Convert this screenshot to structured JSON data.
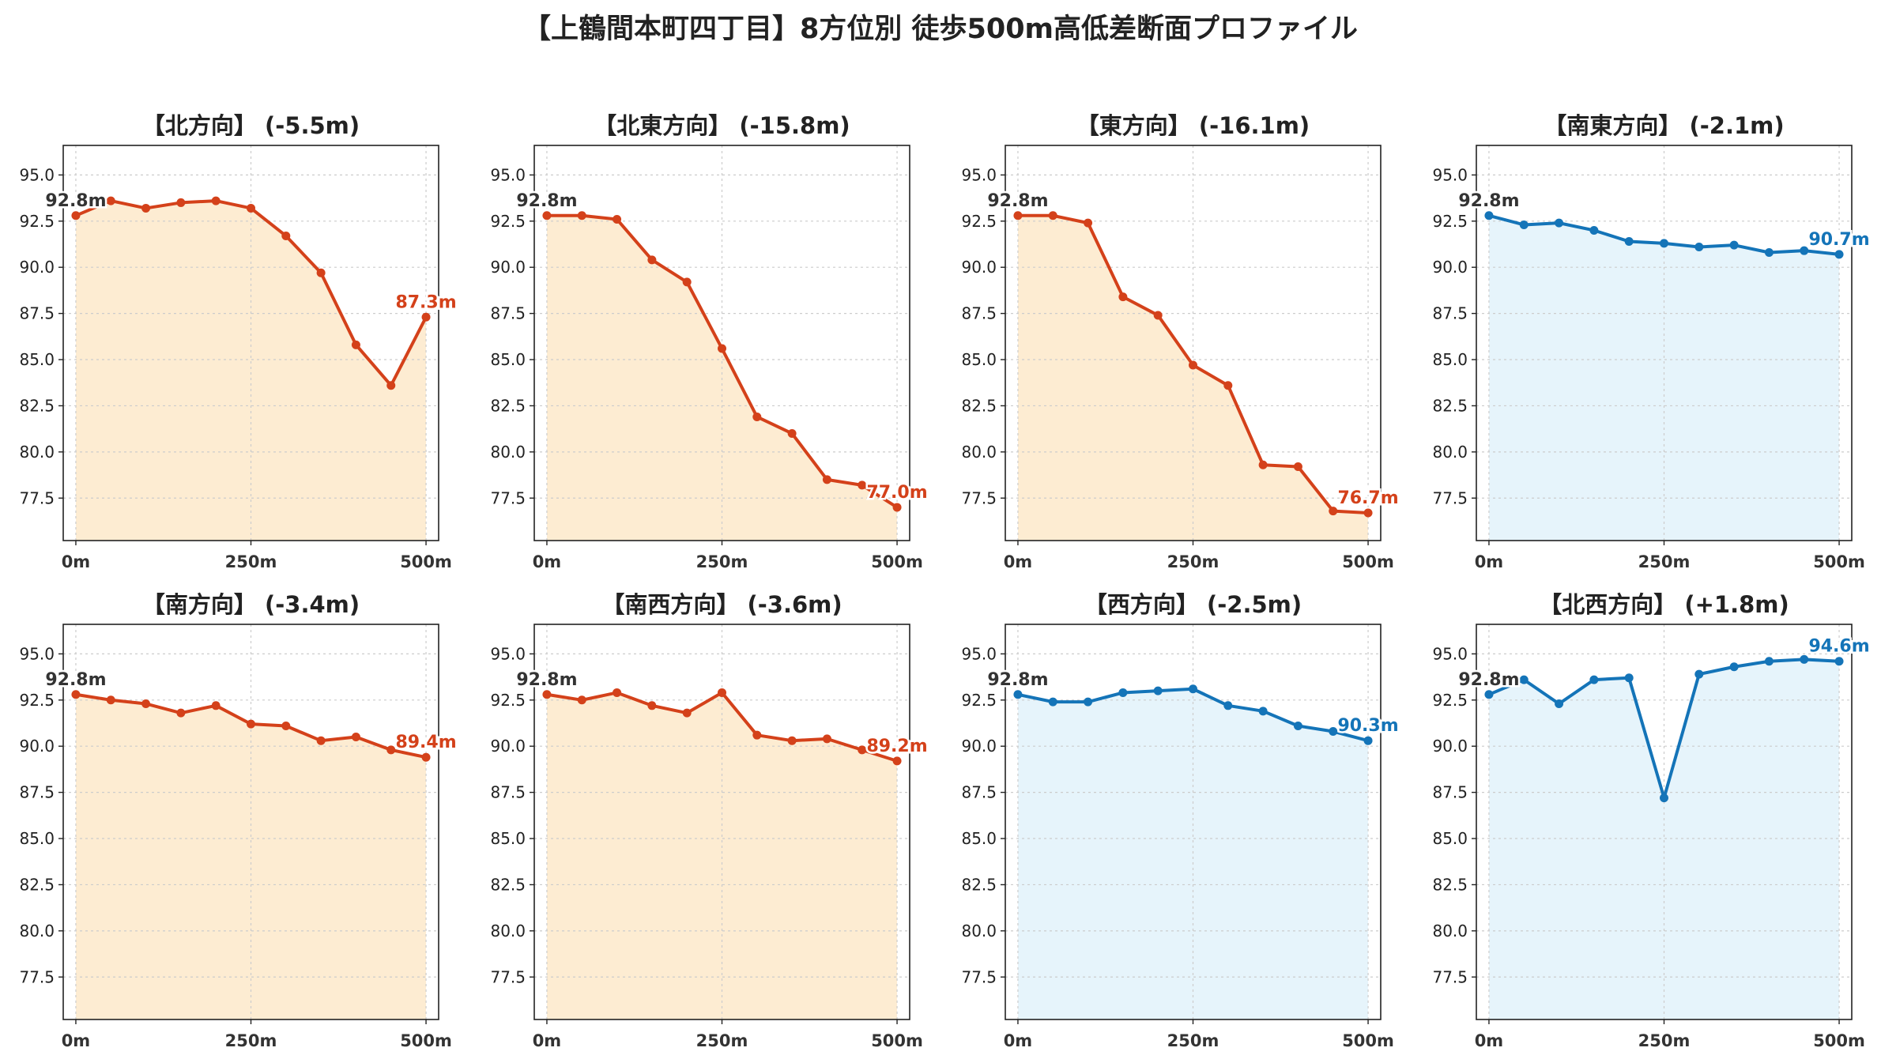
{
  "title": "【上鶴間本町四丁目】8方位別 徒歩500m高低差断面プロファイル",
  "colors": {
    "descent_line": "#d4411a",
    "descent_fill": "#fdecd2",
    "flat_line": "#1474b8",
    "flat_fill": "#e6f4fb",
    "start_label": "#333333",
    "grid": "#cccccc"
  },
  "chart_data": [
    {
      "type": "line",
      "title": "【北方向】 (-5.5m)",
      "x": [
        0,
        50,
        100,
        150,
        200,
        250,
        300,
        350,
        400,
        450,
        500
      ],
      "xticks": [
        "0m",
        "250m",
        "500m"
      ],
      "xtick_values": [
        0,
        250,
        500
      ],
      "yticks": [
        "77.5",
        "80.0",
        "82.5",
        "85.0",
        "87.5",
        "90.0",
        "92.5",
        "95.0"
      ],
      "ytick_values": [
        77.5,
        80,
        82.5,
        85,
        87.5,
        90,
        92.5,
        95
      ],
      "ylim": [
        75.2,
        96.6
      ],
      "xlim": [
        -18,
        518
      ],
      "grid": true,
      "color_scheme": "descent",
      "values": [
        92.8,
        93.6,
        93.2,
        93.5,
        93.6,
        93.2,
        91.7,
        89.7,
        85.8,
        83.6,
        87.3
      ],
      "start_label": "92.8m",
      "end_label": "87.3m"
    },
    {
      "type": "line",
      "title": "【北東方向】 (-15.8m)",
      "x": [
        0,
        50,
        100,
        150,
        200,
        250,
        300,
        350,
        400,
        450,
        500
      ],
      "xticks": [
        "0m",
        "250m",
        "500m"
      ],
      "xtick_values": [
        0,
        250,
        500
      ],
      "yticks": [
        "77.5",
        "80.0",
        "82.5",
        "85.0",
        "87.5",
        "90.0",
        "92.5",
        "95.0"
      ],
      "ytick_values": [
        77.5,
        80,
        82.5,
        85,
        87.5,
        90,
        92.5,
        95
      ],
      "ylim": [
        75.2,
        96.6
      ],
      "xlim": [
        -18,
        518
      ],
      "grid": true,
      "color_scheme": "descent",
      "values": [
        92.8,
        92.8,
        92.6,
        90.4,
        89.2,
        85.6,
        81.9,
        81.0,
        78.5,
        78.2,
        77.0
      ],
      "start_label": "92.8m",
      "end_label": "77.0m"
    },
    {
      "type": "line",
      "title": "【東方向】 (-16.1m)",
      "x": [
        0,
        50,
        100,
        150,
        200,
        250,
        300,
        350,
        400,
        450,
        500
      ],
      "xticks": [
        "0m",
        "250m",
        "500m"
      ],
      "xtick_values": [
        0,
        250,
        500
      ],
      "yticks": [
        "77.5",
        "80.0",
        "82.5",
        "85.0",
        "87.5",
        "90.0",
        "92.5",
        "95.0"
      ],
      "ytick_values": [
        77.5,
        80,
        82.5,
        85,
        87.5,
        90,
        92.5,
        95
      ],
      "ylim": [
        75.2,
        96.6
      ],
      "xlim": [
        -18,
        518
      ],
      "grid": true,
      "color_scheme": "descent",
      "values": [
        92.8,
        92.8,
        92.4,
        88.4,
        87.4,
        84.7,
        83.6,
        79.3,
        79.2,
        76.8,
        76.7
      ],
      "start_label": "92.8m",
      "end_label": "76.7m"
    },
    {
      "type": "line",
      "title": "【南東方向】 (-2.1m)",
      "x": [
        0,
        50,
        100,
        150,
        200,
        250,
        300,
        350,
        400,
        450,
        500
      ],
      "xticks": [
        "0m",
        "250m",
        "500m"
      ],
      "xtick_values": [
        0,
        250,
        500
      ],
      "yticks": [
        "77.5",
        "80.0",
        "82.5",
        "85.0",
        "87.5",
        "90.0",
        "92.5",
        "95.0"
      ],
      "ytick_values": [
        77.5,
        80,
        82.5,
        85,
        87.5,
        90,
        92.5,
        95
      ],
      "ylim": [
        75.2,
        96.6
      ],
      "xlim": [
        -18,
        518
      ],
      "grid": true,
      "color_scheme": "flat",
      "values": [
        92.8,
        92.3,
        92.4,
        92.0,
        91.4,
        91.3,
        91.1,
        91.2,
        90.8,
        90.9,
        90.7
      ],
      "start_label": "92.8m",
      "end_label": "90.7m"
    },
    {
      "type": "line",
      "title": "【南方向】 (-3.4m)",
      "x": [
        0,
        50,
        100,
        150,
        200,
        250,
        300,
        350,
        400,
        450,
        500
      ],
      "xticks": [
        "0m",
        "250m",
        "500m"
      ],
      "xtick_values": [
        0,
        250,
        500
      ],
      "yticks": [
        "77.5",
        "80.0",
        "82.5",
        "85.0",
        "87.5",
        "90.0",
        "92.5",
        "95.0"
      ],
      "ytick_values": [
        77.5,
        80,
        82.5,
        85,
        87.5,
        90,
        92.5,
        95
      ],
      "ylim": [
        75.2,
        96.6
      ],
      "xlim": [
        -18,
        518
      ],
      "grid": true,
      "color_scheme": "descent",
      "values": [
        92.8,
        92.5,
        92.3,
        91.8,
        92.2,
        91.2,
        91.1,
        90.3,
        90.5,
        89.8,
        89.4
      ],
      "start_label": "92.8m",
      "end_label": "89.4m"
    },
    {
      "type": "line",
      "title": "【南西方向】 (-3.6m)",
      "x": [
        0,
        50,
        100,
        150,
        200,
        250,
        300,
        350,
        400,
        450,
        500
      ],
      "xticks": [
        "0m",
        "250m",
        "500m"
      ],
      "xtick_values": [
        0,
        250,
        500
      ],
      "yticks": [
        "77.5",
        "80.0",
        "82.5",
        "85.0",
        "87.5",
        "90.0",
        "92.5",
        "95.0"
      ],
      "ytick_values": [
        77.5,
        80,
        82.5,
        85,
        87.5,
        90,
        92.5,
        95
      ],
      "ylim": [
        75.2,
        96.6
      ],
      "xlim": [
        -18,
        518
      ],
      "grid": true,
      "color_scheme": "descent",
      "values": [
        92.8,
        92.5,
        92.9,
        92.2,
        91.8,
        92.9,
        90.6,
        90.3,
        90.4,
        89.8,
        89.2
      ],
      "start_label": "92.8m",
      "end_label": "89.2m"
    },
    {
      "type": "line",
      "title": "【西方向】 (-2.5m)",
      "x": [
        0,
        50,
        100,
        150,
        200,
        250,
        300,
        350,
        400,
        450,
        500
      ],
      "xticks": [
        "0m",
        "250m",
        "500m"
      ],
      "xtick_values": [
        0,
        250,
        500
      ],
      "yticks": [
        "77.5",
        "80.0",
        "82.5",
        "85.0",
        "87.5",
        "90.0",
        "92.5",
        "95.0"
      ],
      "ytick_values": [
        77.5,
        80,
        82.5,
        85,
        87.5,
        90,
        92.5,
        95
      ],
      "ylim": [
        75.2,
        96.6
      ],
      "xlim": [
        -18,
        518
      ],
      "grid": true,
      "color_scheme": "flat",
      "values": [
        92.8,
        92.4,
        92.4,
        92.9,
        93.0,
        93.1,
        92.2,
        91.9,
        91.1,
        90.8,
        90.3
      ],
      "start_label": "92.8m",
      "end_label": "90.3m"
    },
    {
      "type": "line",
      "title": "【北西方向】 (+1.8m)",
      "x": [
        0,
        50,
        100,
        150,
        200,
        250,
        300,
        350,
        400,
        450,
        500
      ],
      "xticks": [
        "0m",
        "250m",
        "500m"
      ],
      "xtick_values": [
        0,
        250,
        500
      ],
      "yticks": [
        "77.5",
        "80.0",
        "82.5",
        "85.0",
        "87.5",
        "90.0",
        "92.5",
        "95.0"
      ],
      "ytick_values": [
        77.5,
        80,
        82.5,
        85,
        87.5,
        90,
        92.5,
        95
      ],
      "ylim": [
        75.2,
        96.6
      ],
      "xlim": [
        -18,
        518
      ],
      "grid": true,
      "color_scheme": "flat",
      "values": [
        92.8,
        93.6,
        92.3,
        93.6,
        93.7,
        87.2,
        93.9,
        94.3,
        94.6,
        94.7,
        94.6
      ],
      "start_label": "92.8m",
      "end_label": "94.6m"
    }
  ]
}
